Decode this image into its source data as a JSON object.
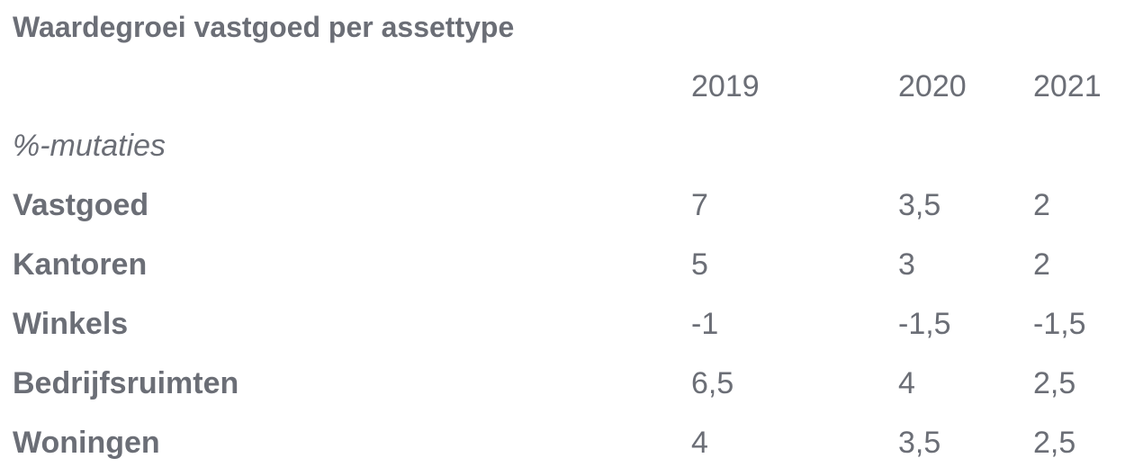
{
  "title": "Waardegroei vastgoed per assettype",
  "columns": [
    "2019",
    "2020",
    "2021"
  ],
  "unit_label": "%-mutaties",
  "rows": [
    {
      "label": "Vastgoed",
      "values": [
        "7",
        "3,5",
        "2"
      ]
    },
    {
      "label": "Kantoren",
      "values": [
        "5",
        "3",
        "2"
      ]
    },
    {
      "label": "Winkels",
      "values": [
        "-1",
        "-1,5",
        "-1,5"
      ]
    },
    {
      "label": "Bedrijfsruimten",
      "values": [
        "6,5",
        "4",
        "2,5"
      ]
    },
    {
      "label": "Woningen",
      "values": [
        "4",
        "3,5",
        "2,5"
      ]
    }
  ],
  "colors": {
    "text": "#6b6e76",
    "background": "#ffffff"
  }
}
